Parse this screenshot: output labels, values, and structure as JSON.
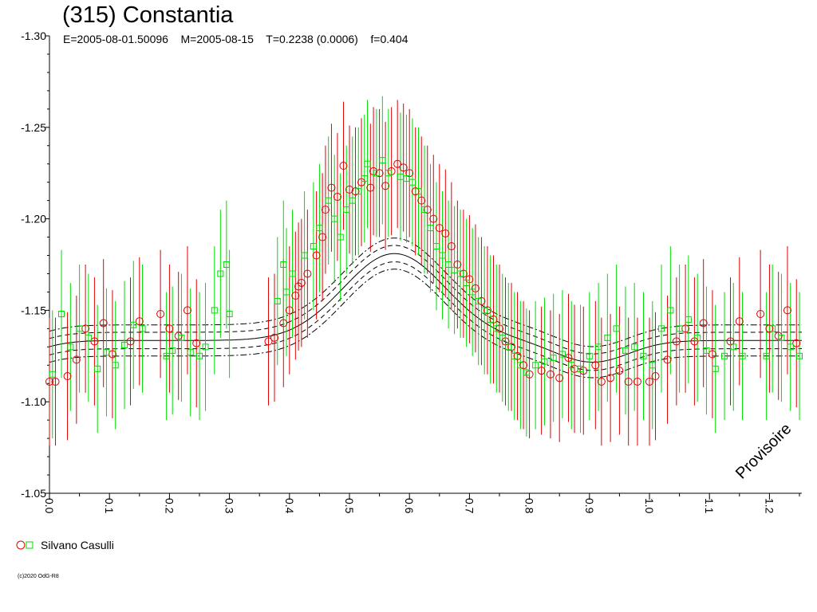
{
  "chart_data": {
    "type": "scatter",
    "title": "(315) Constantia",
    "subtitle": "E=2005-08-01.50096    M=2005-08-15    T=0.2238 (0.0006)    f=0.404",
    "xlabel": "",
    "ylabel": "",
    "x_range": [
      0.0,
      1.25
    ],
    "ylim": [
      -1.3,
      -1.05
    ],
    "y_axis_inverted": true,
    "x_ticks": [
      "0.0",
      "0.1",
      "0.2",
      "0.3",
      "0.4",
      "0.5",
      "0.6",
      "0.7",
      "0.8",
      "0.9",
      "1.0",
      "1.1",
      "1.2"
    ],
    "y_ticks": [
      "-1.30",
      "-1.25",
      "-1.20",
      "-1.15",
      "-1.10",
      "-1.05"
    ],
    "grid": false,
    "legend_position": "bottom-left",
    "watermark": "Provisoire",
    "fit_curves": [
      {
        "style": "solid",
        "center": -1.1335,
        "amplitude": 0.0475,
        "peak_phase": 0.575,
        "trough_phase": 0.905
      },
      {
        "style": "dashed",
        "center": -1.1335,
        "amplitude": 0.0475,
        "offset": 0.0045
      },
      {
        "style": "dash-dot",
        "center": -1.1335,
        "amplitude": 0.0475,
        "offset": 0.0085
      }
    ],
    "series": [
      {
        "name": "Silvano Casulli",
        "marker": "circle",
        "color": "#e00000",
        "errorbar_halfwidth": 0.035,
        "x": [
          0.0,
          0.01,
          0.03,
          0.045,
          0.06,
          0.075,
          0.09,
          0.105,
          0.135,
          0.15,
          0.185,
          0.2,
          0.215,
          0.23,
          0.245,
          0.365,
          0.375,
          0.39,
          0.4,
          0.41,
          0.415,
          0.42,
          0.43,
          0.445,
          0.455,
          0.46,
          0.47,
          0.48,
          0.49,
          0.5,
          0.51,
          0.52,
          0.535,
          0.54,
          0.55,
          0.56,
          0.57,
          0.58,
          0.59,
          0.6,
          0.61,
          0.62,
          0.63,
          0.64,
          0.65,
          0.66,
          0.67,
          0.68,
          0.69,
          0.7,
          0.71,
          0.72,
          0.73,
          0.74,
          0.75,
          0.76,
          0.77,
          0.78,
          0.79,
          0.8,
          0.82,
          0.835,
          0.85,
          0.865,
          0.875,
          0.89,
          0.91,
          0.92,
          0.935,
          0.95,
          0.965,
          0.98,
          1.0,
          1.01,
          1.03,
          1.045,
          1.06,
          1.075,
          1.09,
          1.105,
          1.135,
          1.15,
          1.185,
          1.2,
          1.215,
          1.23,
          1.245
        ],
        "y": [
          -1.111,
          -1.111,
          -1.114,
          -1.123,
          -1.14,
          -1.133,
          -1.143,
          -1.126,
          -1.133,
          -1.144,
          -1.148,
          -1.14,
          -1.136,
          -1.15,
          -1.132,
          -1.133,
          -1.135,
          -1.143,
          -1.15,
          -1.158,
          -1.163,
          -1.165,
          -1.17,
          -1.18,
          -1.19,
          -1.205,
          -1.217,
          -1.212,
          -1.229,
          -1.216,
          -1.215,
          -1.22,
          -1.217,
          -1.226,
          -1.225,
          -1.218,
          -1.226,
          -1.23,
          -1.228,
          -1.225,
          -1.215,
          -1.21,
          -1.205,
          -1.2,
          -1.195,
          -1.192,
          -1.185,
          -1.175,
          -1.17,
          -1.167,
          -1.162,
          -1.155,
          -1.15,
          -1.145,
          -1.14,
          -1.133,
          -1.13,
          -1.125,
          -1.12,
          -1.115,
          -1.117,
          -1.115,
          -1.113,
          -1.124,
          -1.118,
          -1.117,
          -1.12,
          -1.111,
          -1.113,
          -1.117,
          -1.111,
          -1.111,
          -1.111,
          -1.114,
          -1.123,
          -1.133,
          -1.14,
          -1.133,
          -1.143,
          -1.126,
          -1.133,
          -1.144,
          -1.148,
          -1.14,
          -1.136,
          -1.15,
          -1.132
        ]
      },
      {
        "name": "Silvano Casulli",
        "marker": "square",
        "color": "#00dd00",
        "errorbar_halfwidth": 0.035,
        "x": [
          0.005,
          0.02,
          0.035,
          0.05,
          0.065,
          0.08,
          0.095,
          0.11,
          0.125,
          0.14,
          0.155,
          0.195,
          0.205,
          0.22,
          0.235,
          0.25,
          0.26,
          0.275,
          0.285,
          0.295,
          0.3,
          0.38,
          0.39,
          0.395,
          0.405,
          0.425,
          0.44,
          0.45,
          0.465,
          0.475,
          0.485,
          0.495,
          0.505,
          0.515,
          0.525,
          0.53,
          0.545,
          0.555,
          0.565,
          0.585,
          0.595,
          0.605,
          0.615,
          0.625,
          0.635,
          0.645,
          0.655,
          0.665,
          0.675,
          0.685,
          0.695,
          0.705,
          0.715,
          0.725,
          0.735,
          0.745,
          0.755,
          0.765,
          0.775,
          0.785,
          0.795,
          0.81,
          0.825,
          0.84,
          0.855,
          0.87,
          0.885,
          0.9,
          0.915,
          0.93,
          0.945,
          0.96,
          0.975,
          0.99,
          1.005,
          1.02,
          1.035,
          1.05,
          1.065,
          1.08,
          1.095,
          1.11,
          1.125,
          1.14,
          1.155,
          1.195,
          1.205,
          1.22,
          1.235,
          1.25
        ],
        "y": [
          -1.115,
          -1.148,
          -1.13,
          -1.14,
          -1.135,
          -1.118,
          -1.127,
          -1.12,
          -1.131,
          -1.142,
          -1.14,
          -1.125,
          -1.128,
          -1.135,
          -1.127,
          -1.125,
          -1.13,
          -1.15,
          -1.17,
          -1.175,
          -1.148,
          -1.155,
          -1.175,
          -1.16,
          -1.17,
          -1.18,
          -1.185,
          -1.195,
          -1.21,
          -1.2,
          -1.19,
          -1.205,
          -1.21,
          -1.215,
          -1.222,
          -1.23,
          -1.225,
          -1.232,
          -1.225,
          -1.223,
          -1.222,
          -1.22,
          -1.215,
          -1.205,
          -1.195,
          -1.185,
          -1.18,
          -1.175,
          -1.172,
          -1.17,
          -1.165,
          -1.16,
          -1.155,
          -1.15,
          -1.145,
          -1.14,
          -1.135,
          -1.13,
          -1.125,
          -1.12,
          -1.116,
          -1.12,
          -1.122,
          -1.124,
          -1.126,
          -1.12,
          -1.118,
          -1.125,
          -1.13,
          -1.135,
          -1.14,
          -1.128,
          -1.13,
          -1.125,
          -1.12,
          -1.14,
          -1.15,
          -1.14,
          -1.145,
          -1.135,
          -1.128,
          -1.118,
          -1.125,
          -1.13,
          -1.125,
          -1.125,
          -1.14,
          -1.135,
          -1.13,
          -1.125
        ]
      }
    ]
  },
  "legend": {
    "label": "Silvano Casulli"
  },
  "copyright": "(c)2020 OdG-R8",
  "colors": {
    "red": "#e00000",
    "green": "#00dd00",
    "axis": "#000000"
  }
}
